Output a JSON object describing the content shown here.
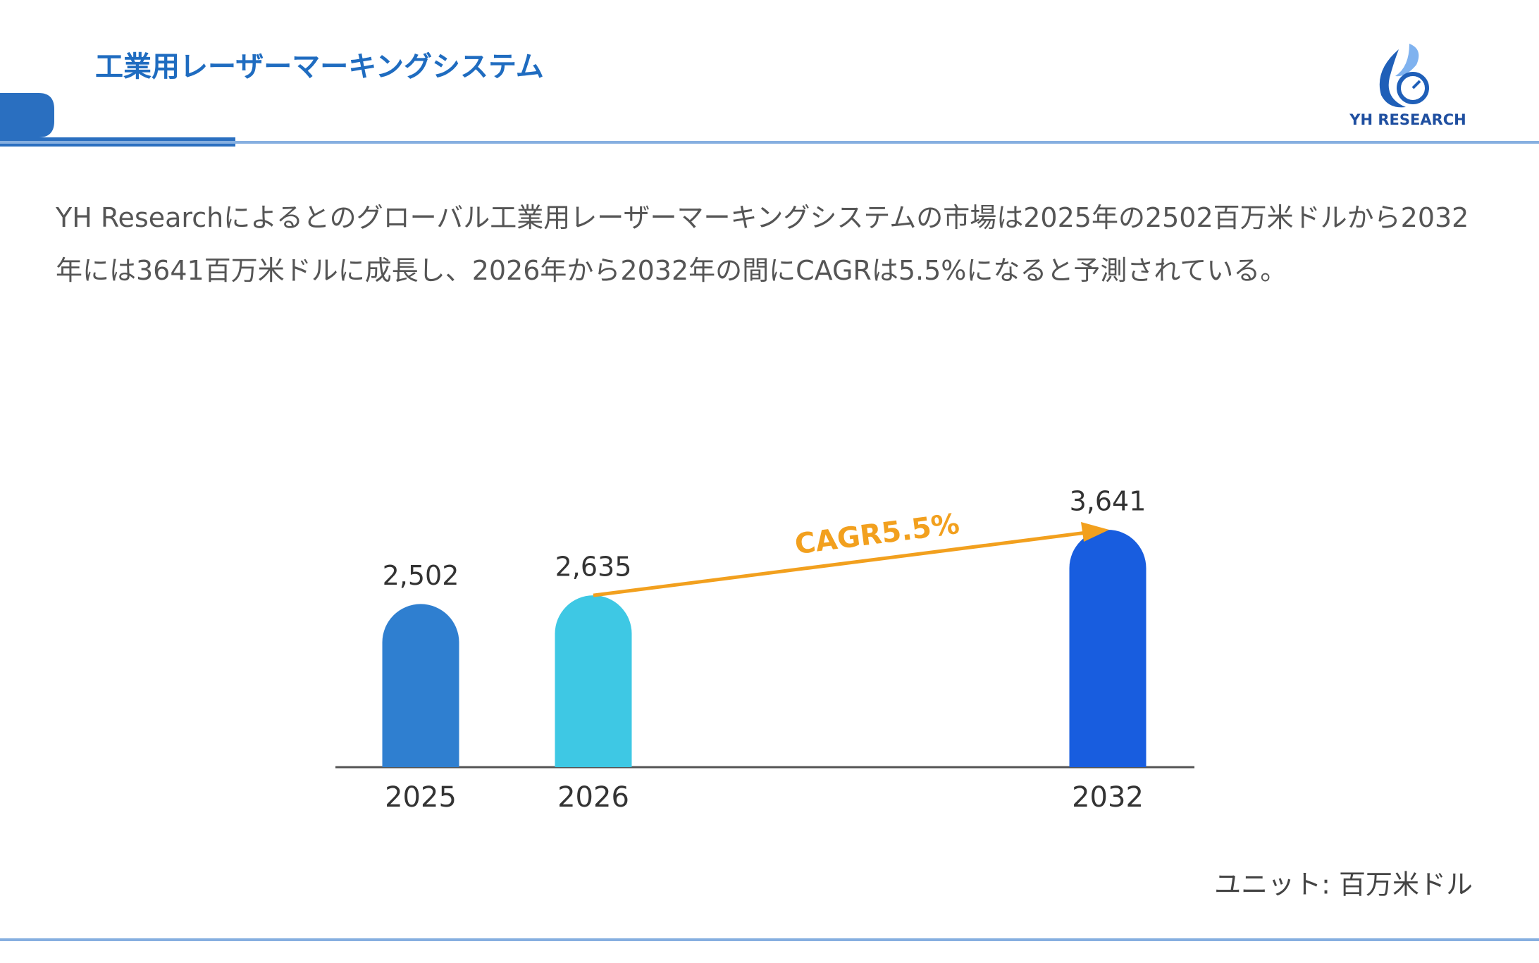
{
  "header": {
    "title": "工業用レーザーマーキングシステム",
    "logo": "YH RESEARCH"
  },
  "description": "YH Researchによるとのグローバル工業用レーザーマーキングシステムの市場は2025年の2502百万米ドルから2032年には3641百万米ドルに成長し、2026年から2032年の間にCAGRは5.5%になると予測されている。",
  "chart_data": {
    "type": "bar",
    "categories": [
      "2025",
      "2026",
      "2032"
    ],
    "values": [
      2502,
      2635,
      3641
    ],
    "value_labels": [
      "2,502",
      "2,635",
      "3,641"
    ],
    "colors": [
      "#2f7fd0",
      "#3ec8e4",
      "#185ddf"
    ],
    "annotation": "CAGR5.5%",
    "unit_label": "ユニット: 百万米ドル"
  }
}
